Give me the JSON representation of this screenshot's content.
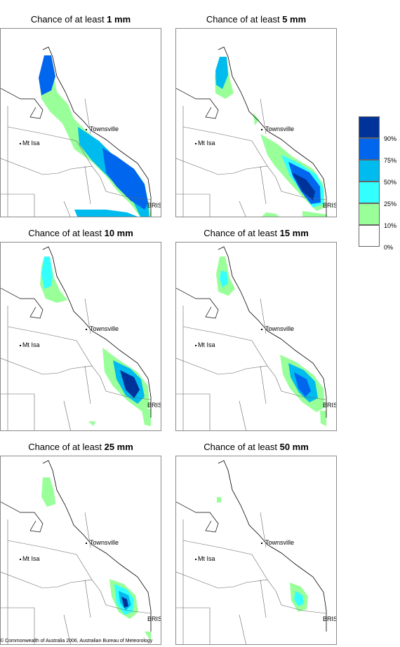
{
  "panels": [
    {
      "prefix": "Chance of at least ",
      "amount": "1 mm"
    },
    {
      "prefix": "Chance of at least ",
      "amount": "5 mm"
    },
    {
      "prefix": "Chance of at least ",
      "amount": "10 mm"
    },
    {
      "prefix": "Chance of at least ",
      "amount": "15 mm"
    },
    {
      "prefix": "Chance of at least ",
      "amount": "25 mm"
    },
    {
      "prefix": "Chance of at least ",
      "amount": "50 mm"
    }
  ],
  "places": {
    "townsville": "Townsville",
    "mt_isa": "Mt Isa",
    "bris": "BRIS"
  },
  "legend": {
    "labels": [
      "90%",
      "75%",
      "50%",
      "25%",
      "10%",
      "0%"
    ],
    "colors": [
      "#003399",
      "#0066ee",
      "#00bbee",
      "#33ffff",
      "#99ff99",
      "#ffffff"
    ]
  },
  "copyright": "© Commonwealth of Australia 2006, Australian Bureau of Meteorology"
}
